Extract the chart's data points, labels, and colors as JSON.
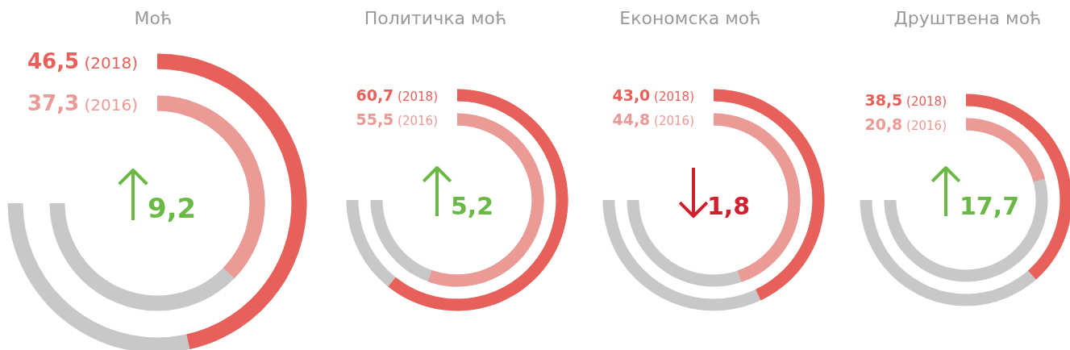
{
  "chart_data": [
    {
      "type": "other",
      "title": "Моћ",
      "categories": [
        "(2018)",
        "(2016)"
      ],
      "values": [
        46.5,
        37.3
      ],
      "value_labels": [
        "46,5",
        "37,3"
      ],
      "colors": [
        "#e8605a",
        "#eb9a96"
      ],
      "annotations": [
        "9,2"
      ]
    },
    {
      "type": "other",
      "title": "Политичка моћ",
      "categories": [
        "(2018)",
        "(2016)"
      ],
      "values": [
        60.7,
        55.5
      ],
      "value_labels": [
        "60,7",
        "55,5"
      ],
      "colors": [
        "#e8605a",
        "#eb9a96"
      ],
      "annotations": [
        "5,2"
      ]
    },
    {
      "type": "other",
      "title": "Економска моћ",
      "categories": [
        "(2018)",
        "(2016)"
      ],
      "values": [
        43.0,
        44.8
      ],
      "value_labels": [
        "43,0",
        "44,8"
      ],
      "colors": [
        "#e8605a",
        "#eb9a96"
      ],
      "annotations": [
        "1,8"
      ]
    },
    {
      "type": "other",
      "title": "Друштвена моћ",
      "categories": [
        "(2018)",
        "(2016)"
      ],
      "values": [
        38.5,
        20.8
      ],
      "value_labels": [
        "38,5",
        "20,8"
      ],
      "colors": [
        "#e8605a",
        "#eb9a96"
      ],
      "annotations": [
        "17,7"
      ]
    }
  ]
}
